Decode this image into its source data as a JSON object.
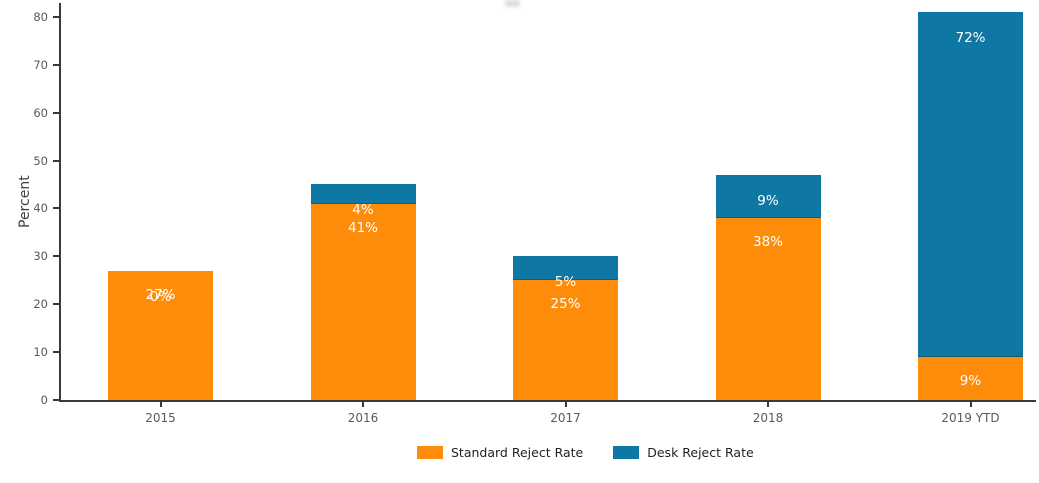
{
  "figure": {
    "background": "#ffffff",
    "axis_color": "#3a3a3a",
    "tick_label_color": "#5a5a5a"
  },
  "chart_data": {
    "type": "bar",
    "stacked": true,
    "title": "",
    "ylabel": "Percent",
    "xlabel": "",
    "categories": [
      "2015",
      "2016",
      "2017",
      "2018",
      "2019 YTD"
    ],
    "series": [
      {
        "name": "Standard Reject Rate",
        "color": "#FC8C0A",
        "values": [
          27,
          41,
          25,
          38,
          9
        ],
        "labels": [
          "27%",
          "41%",
          "25%",
          "38%",
          "9%"
        ]
      },
      {
        "name": "Desk Reject Rate",
        "color": "#0F77A3",
        "values": [
          0,
          4,
          5,
          9,
          72
        ],
        "labels": [
          "0%",
          "4%",
          "5%",
          "9%",
          "72%"
        ]
      }
    ],
    "totals": [
      27,
      45,
      30,
      47,
      81
    ],
    "yticks": [
      0,
      10,
      20,
      30,
      40,
      50,
      60,
      70,
      80
    ],
    "ylim": [
      0,
      83
    ],
    "grid": false,
    "legend_position": "bottom-center",
    "bar_label_color": "#ffffff"
  }
}
